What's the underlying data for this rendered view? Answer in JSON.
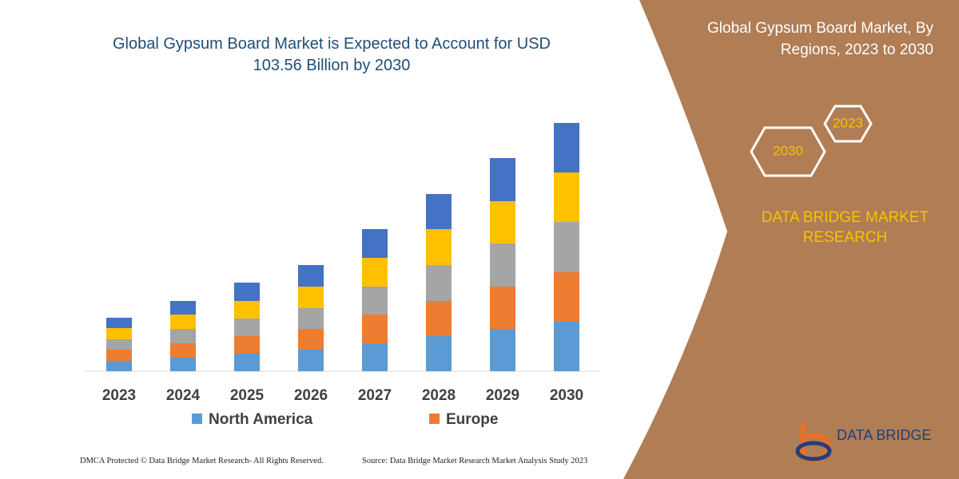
{
  "title": "Global Gypsum Board Market is Expected to Account for USD 103.56 Billion by 2030",
  "side_title": "Global Gypsum Board Market, By Regions, 2023 to 2030",
  "badges": [
    "2023",
    "2030"
  ],
  "brand": "DATA BRIDGE MARKET RESEARCH",
  "logo": "DATA BRIDGE",
  "footer_left": "DMCA Protected © Data Bridge Market Research-  All Rights Reserved.",
  "footer_right": "Source: Data Bridge Market Research  Market Analysis Study 2023",
  "chart_data": {
    "type": "stacked_bar",
    "categories": [
      "2023",
      "2024",
      "2025",
      "2026",
      "2027",
      "2028",
      "2029",
      "2030"
    ],
    "series": [
      {
        "name": "North America",
        "color": "#5b9bd5",
        "values": [
          13,
          17,
          22,
          27,
          35,
          44,
          53,
          62
        ]
      },
      {
        "name": "Europe",
        "color": "#ed7d31",
        "values": [
          14,
          18,
          22,
          26,
          36,
          44,
          53,
          62
        ]
      },
      {
        "color": "#a5a5a5",
        "values": [
          13,
          18,
          22,
          26,
          35,
          45,
          54,
          63
        ]
      },
      {
        "color": "#ffc000",
        "values": [
          14,
          18,
          22,
          27,
          36,
          45,
          53,
          62
        ]
      },
      {
        "color": "#4472c4",
        "values": [
          13,
          17,
          23,
          27,
          36,
          44,
          54,
          62
        ]
      }
    ],
    "ylim": [
      0,
      311
    ]
  }
}
